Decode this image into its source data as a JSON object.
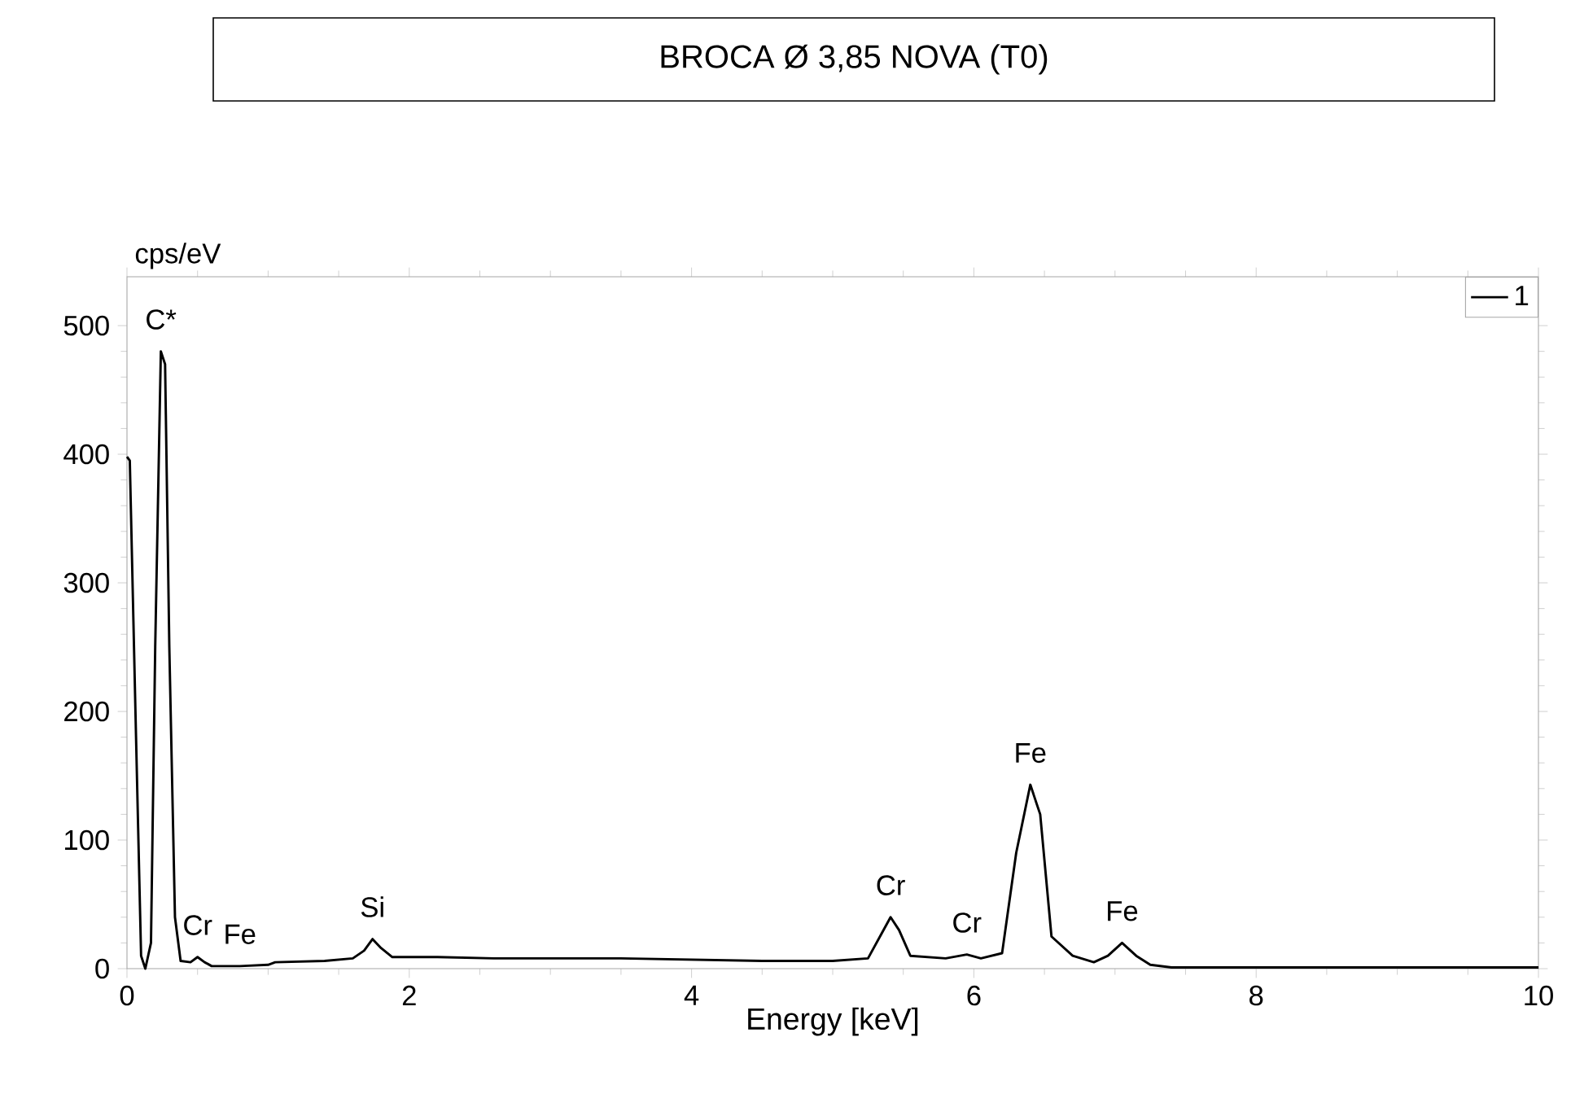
{
  "chart_data": {
    "type": "line",
    "title": "BROCA Ø 3,85 NOVA (T0)",
    "xlabel": "Energy [keV]",
    "ylabel": "cps/eV",
    "x": [
      0,
      0.02,
      0.06,
      0.1,
      0.13,
      0.17,
      0.2,
      0.24,
      0.27,
      0.3,
      0.34,
      0.38,
      0.45,
      0.5,
      0.55,
      0.6,
      0.8,
      1.0,
      1.05,
      1.4,
      1.6,
      1.68,
      1.74,
      1.8,
      1.88,
      2.2,
      2.6,
      3.5,
      4.5,
      5.0,
      5.25,
      5.35,
      5.41,
      5.47,
      5.55,
      5.8,
      5.95,
      6.05,
      6.2,
      6.3,
      6.4,
      6.47,
      6.55,
      6.7,
      6.85,
      6.95,
      7.05,
      7.15,
      7.25,
      7.4,
      8.5,
      10
    ],
    "series": [
      {
        "name": "1",
        "color": "#000000",
        "values": [
          398,
          395,
          200,
          10,
          0,
          20,
          250,
          480,
          470,
          250,
          40,
          6,
          5,
          9,
          5,
          2,
          2,
          3,
          5,
          6,
          8,
          14,
          23,
          16,
          9,
          9,
          8,
          8,
          6,
          6,
          8,
          28,
          40,
          30,
          10,
          8,
          11,
          8,
          12,
          90,
          143,
          120,
          25,
          10,
          5,
          10,
          20,
          10,
          3,
          1,
          1,
          1
        ]
      }
    ],
    "xlim": [
      0,
      10
    ],
    "ylim": [
      0,
      538
    ],
    "xticks": [
      0,
      2,
      4,
      6,
      8,
      10
    ],
    "yticks": [
      0,
      100,
      200,
      300,
      400,
      500
    ],
    "grid": false,
    "legend": "top right",
    "marker": "none",
    "line_style": "solid",
    "annotations": [
      {
        "text": "C*",
        "x": 0.24,
        "y": 480
      },
      {
        "text": "Cr",
        "x": 0.5,
        "y": 9
      },
      {
        "text": "Fe",
        "x": 0.8,
        "y": 2
      },
      {
        "text": "Si",
        "x": 1.74,
        "y": 23
      },
      {
        "text": "Cr",
        "x": 5.41,
        "y": 40
      },
      {
        "text": "Cr",
        "x": 5.95,
        "y": 11
      },
      {
        "text": "Fe",
        "x": 6.4,
        "y": 143
      },
      {
        "text": "Fe",
        "x": 7.05,
        "y": 20
      }
    ]
  }
}
